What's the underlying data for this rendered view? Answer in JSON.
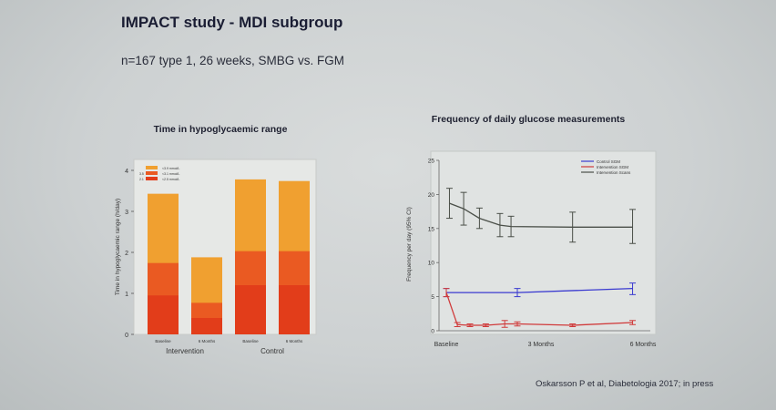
{
  "slide": {
    "title": "IMPACT study - MDI subgroup",
    "subtitle": "n=167 type 1, 26 weeks, SMBG vs. FGM",
    "citation": "Oskarsson P et al, Diabetologia 2017; in press"
  },
  "chart_data": [
    {
      "type": "bar",
      "title": "Time in hypoglycaemic range",
      "ylabel": "Time in hypoglycaemic range (h/day)",
      "ylim": [
        0,
        4
      ],
      "yticks": [
        0,
        1,
        2,
        3,
        4
      ],
      "categories": [
        "Baseline",
        "6 Months",
        "Baseline",
        "6 Months"
      ],
      "groups": [
        {
          "label": "Intervention",
          "categories": [
            "Baseline",
            "6 Months"
          ]
        },
        {
          "label": "Control",
          "categories": [
            "Baseline",
            "6 Months"
          ]
        }
      ],
      "legend": {
        "position": "top-left",
        "entries": [
          {
            "code": "",
            "label": "<3.9 mmol/L",
            "color": "#f0a030"
          },
          {
            "code": "3.5",
            "label": "<3.1 mmol/L",
            "color": "#ea5a22"
          },
          {
            "code": "2.1",
            "label": "<2.5 mmol/L",
            "color": "#e23d1a"
          }
        ]
      },
      "series": [
        {
          "name": "<3.9 mmol/L",
          "color": "#f0a030",
          "values": [
            3.43,
            1.88,
            3.78,
            3.74
          ]
        },
        {
          "name": "<3.1 mmol/L",
          "color": "#ea5a22",
          "values": [
            1.74,
            0.77,
            2.03,
            2.03
          ]
        },
        {
          "name": "<2.5 mmol/L",
          "color": "#e23d1a",
          "values": [
            0.95,
            0.4,
            1.2,
            1.2
          ]
        }
      ]
    },
    {
      "type": "line",
      "title": "Frequency of daily glucose measurements",
      "ylabel": "Frequency per day (95% CI)",
      "ylim": [
        0,
        25
      ],
      "yticks": [
        0,
        5,
        10,
        15,
        20,
        25
      ],
      "xlim": [
        0,
        6
      ],
      "xtick_labels": [
        {
          "x": 0,
          "label": "Baseline"
        },
        {
          "x": 3,
          "label": "3 Months"
        },
        {
          "x": 6,
          "label": "6 Months"
        }
      ],
      "legend_position": "top-right",
      "series": [
        {
          "name": "Control SGM",
          "color": "#3a3ad0",
          "points": [
            {
              "x": 0,
              "y": 5.6,
              "lo": 5.0,
              "hi": 6.2
            },
            {
              "x": 2.25,
              "y": 5.6,
              "lo": 5.0,
              "hi": 6.2
            },
            {
              "x": 5.9,
              "y": 6.2,
              "lo": 5.3,
              "hi": 7.0
            }
          ]
        },
        {
          "name": "Intervention SGM",
          "color": "#d03a3a",
          "points": [
            {
              "x": 0,
              "y": 5.6,
              "lo": 5.0,
              "hi": 6.2
            },
            {
              "x": 0.35,
              "y": 0.9,
              "lo": 0.6,
              "hi": 1.2
            },
            {
              "x": 0.75,
              "y": 0.8,
              "lo": 0.6,
              "hi": 1.0
            },
            {
              "x": 1.25,
              "y": 0.8,
              "lo": 0.6,
              "hi": 1.0
            },
            {
              "x": 1.85,
              "y": 1.0,
              "lo": 0.5,
              "hi": 1.5
            },
            {
              "x": 2.25,
              "y": 1.0,
              "lo": 0.7,
              "hi": 1.3
            },
            {
              "x": 4.0,
              "y": 0.8,
              "lo": 0.6,
              "hi": 1.0
            },
            {
              "x": 5.9,
              "y": 1.2,
              "lo": 0.9,
              "hi": 1.5
            }
          ]
        },
        {
          "name": "Intervention Scans",
          "color": "#4a4f48",
          "points": [
            {
              "x": 0.1,
              "y": 18.7,
              "lo": 16.5,
              "hi": 20.9
            },
            {
              "x": 0.55,
              "y": 17.9,
              "lo": 15.5,
              "hi": 20.3
            },
            {
              "x": 1.05,
              "y": 16.5,
              "lo": 15.0,
              "hi": 18.0
            },
            {
              "x": 1.7,
              "y": 15.5,
              "lo": 13.8,
              "hi": 17.2
            },
            {
              "x": 2.05,
              "y": 15.3,
              "lo": 13.8,
              "hi": 16.8
            },
            {
              "x": 4.0,
              "y": 15.2,
              "lo": 13.0,
              "hi": 17.4
            },
            {
              "x": 5.9,
              "y": 15.2,
              "lo": 12.8,
              "hi": 17.8
            }
          ]
        }
      ]
    }
  ]
}
